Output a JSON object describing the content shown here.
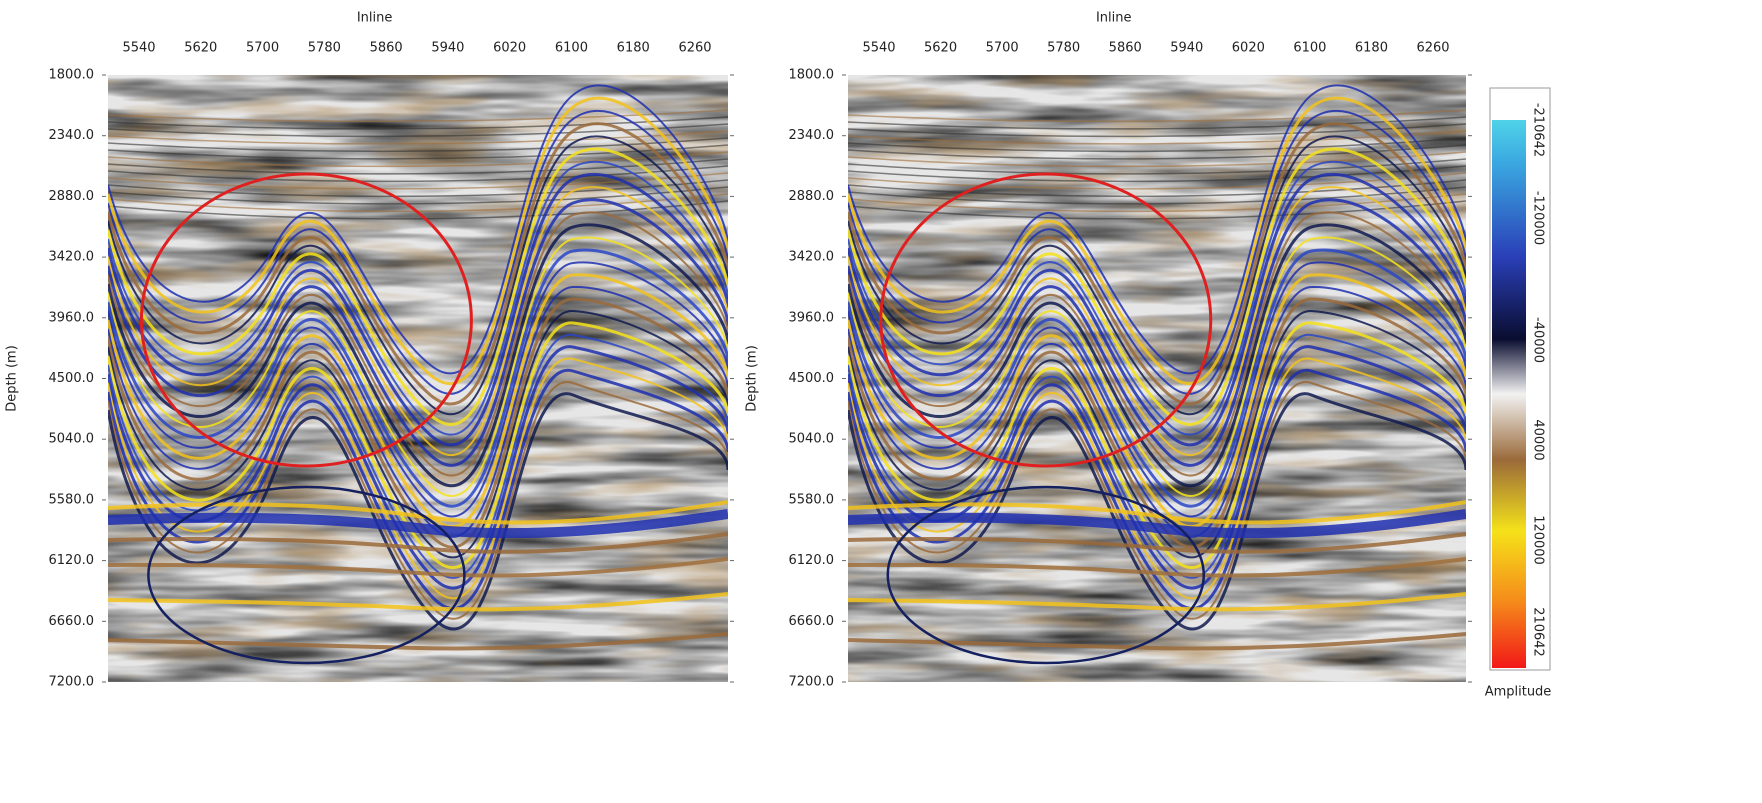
{
  "panels": [
    {
      "x_axis": {
        "label": "Inline",
        "ticks": [
          "5540",
          "5620",
          "5700",
          "5780",
          "5860",
          "5940",
          "6020",
          "6100",
          "6180",
          "6260"
        ]
      },
      "y_axis": {
        "label": "Depth (m)",
        "ticks": [
          "1800.0",
          "2340.0",
          "2880.0",
          "3420.0",
          "3960.0",
          "4500.0",
          "5040.0",
          "5580.0",
          "6120.0",
          "6660.0",
          "7200.0"
        ]
      }
    },
    {
      "x_axis": {
        "label": "Inline",
        "ticks": [
          "5540",
          "5620",
          "5700",
          "5780",
          "5860",
          "5940",
          "6020",
          "6100",
          "6180",
          "6260"
        ]
      },
      "y_axis": {
        "label": "Depth (m)",
        "ticks": [
          "1800.0",
          "2340.0",
          "2880.0",
          "3420.0",
          "3960.0",
          "4500.0",
          "5040.0",
          "5580.0",
          "6120.0",
          "6660.0",
          "7200.0"
        ]
      }
    }
  ],
  "colorbar": {
    "label": "Amplitude",
    "ticks": [
      "-210642",
      "-120000",
      "-40000",
      "40000",
      "120000",
      "210642"
    ]
  }
}
